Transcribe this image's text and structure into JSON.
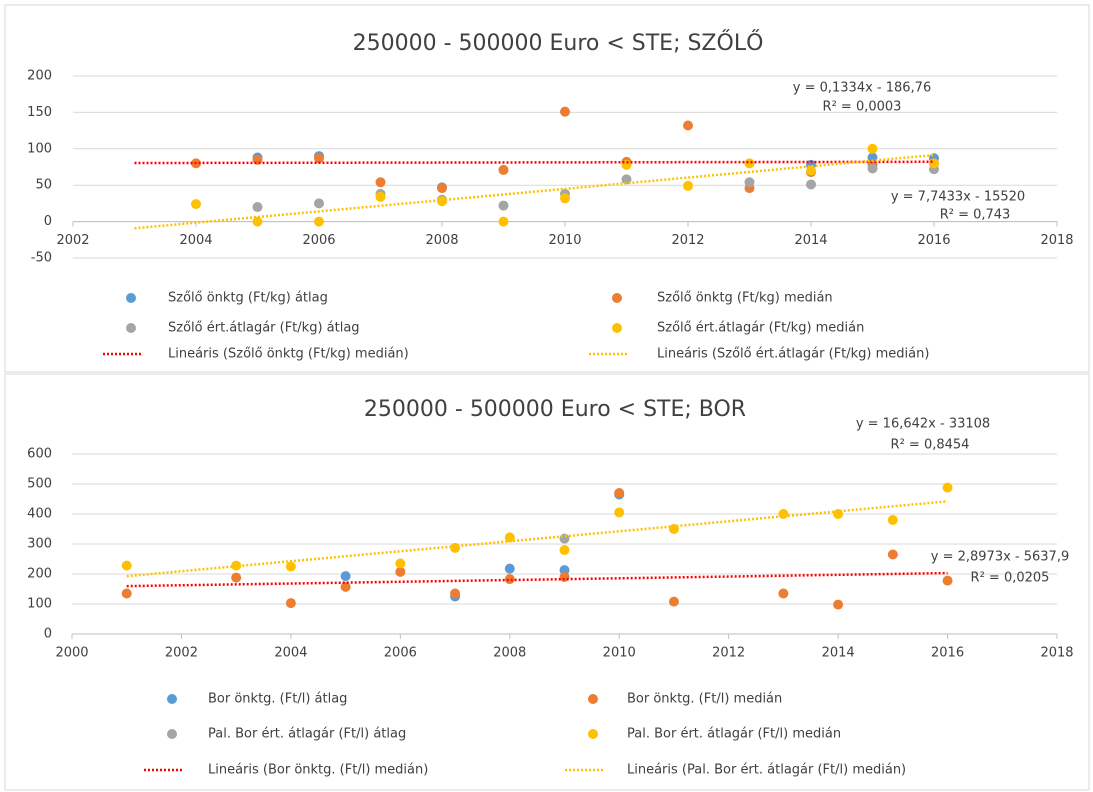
{
  "chart_data": [
    {
      "type": "scatter",
      "title": "250000 - 500000 Euro < STE; SZŐLŐ",
      "xlim": [
        2002,
        2018
      ],
      "xticks": [
        2002,
        2004,
        2006,
        2008,
        2010,
        2012,
        2014,
        2016,
        2018
      ],
      "ylim": [
        -50,
        200
      ],
      "yticks": [
        -50,
        0,
        50,
        100,
        150,
        200
      ],
      "grid": true,
      "series": [
        {
          "name": "Szőlő önktg (Ft/kg) átlag",
          "color": "#5b9bd5",
          "x": [
            2005,
            2006,
            2008,
            2011,
            2014,
            2015,
            2016
          ],
          "values": [
            88,
            90,
            47,
            80,
            78,
            88,
            87
          ]
        },
        {
          "name": "Szőlő önktg (Ft/kg) medián",
          "color": "#ed7d31",
          "x": [
            2004,
            2005,
            2006,
            2007,
            2008,
            2009,
            2010,
            2011,
            2012,
            2013,
            2014,
            2015,
            2016
          ],
          "values": [
            80,
            85,
            87,
            54,
            46,
            71,
            151,
            82,
            132,
            46,
            68,
            78,
            80
          ]
        },
        {
          "name": "Szőlő ért.átlagár (Ft/kg) átlag",
          "color": "#a5a5a5",
          "x": [
            2005,
            2006,
            2007,
            2008,
            2009,
            2010,
            2011,
            2013,
            2014,
            2015,
            2016
          ],
          "values": [
            20,
            25,
            38,
            30,
            22,
            38,
            58,
            54,
            51,
            73,
            72
          ]
        },
        {
          "name": "Szőlő ért.átlagár (Ft/kg) medián",
          "color": "#ffc000",
          "x": [
            2004,
            2005,
            2006,
            2007,
            2008,
            2009,
            2010,
            2011,
            2012,
            2013,
            2014,
            2015,
            2016
          ],
          "values": [
            24,
            0,
            0,
            34,
            28,
            0,
            32,
            78,
            49,
            80,
            70,
            100,
            80
          ]
        },
        {
          "name": "Lineáris (Szőlő önktg (Ft/kg) medián)",
          "type": "trendline",
          "color": "#ff0000",
          "x": [
            2003,
            2016
          ],
          "values": [
            80.44,
            82.17
          ]
        },
        {
          "name": "Lineáris (Szőlő ért.átlagár (Ft/kg) medián)",
          "type": "trendline",
          "color": "#ffc000",
          "x": [
            2003,
            2016
          ],
          "values": [
            -9.2,
            91.46
          ]
        }
      ],
      "annotations": [
        "y = 0,1334x - 186,76",
        "R² = 0,0003",
        "y = 7,7433x - 15520",
        "R² = 0,743"
      ]
    },
    {
      "type": "scatter",
      "title": "250000 - 500000 Euro < STE; BOR",
      "xlim": [
        2000,
        2018
      ],
      "xticks": [
        2000,
        2002,
        2004,
        2006,
        2008,
        2010,
        2012,
        2014,
        2016,
        2018
      ],
      "ylim": [
        0,
        600
      ],
      "yticks": [
        0,
        100,
        200,
        300,
        400,
        500,
        600
      ],
      "grid": true,
      "series": [
        {
          "name": "Bor önktg. (Ft/l) átlag",
          "color": "#5b9bd5",
          "x": [
            2005,
            2007,
            2008,
            2009,
            2010
          ],
          "values": [
            193,
            125,
            218,
            213,
            465
          ]
        },
        {
          "name": "Bor önktg. (Ft/l) medián",
          "color": "#ed7d31",
          "x": [
            2001,
            2003,
            2004,
            2005,
            2006,
            2007,
            2008,
            2009,
            2010,
            2011,
            2013,
            2014,
            2015,
            2016
          ],
          "values": [
            135,
            188,
            103,
            157,
            207,
            135,
            183,
            190,
            470,
            108,
            135,
            98,
            265,
            178
          ]
        },
        {
          "name": "Pal. Bor ért. átlagár (Ft/l) átlag",
          "color": "#a5a5a5",
          "x": [
            2009
          ],
          "values": [
            318
          ]
        },
        {
          "name": "Pal. Bor ért. átlagár (Ft/l) medián",
          "color": "#ffc000",
          "x": [
            2001,
            2003,
            2004,
            2006,
            2007,
            2008,
            2009,
            2010,
            2011,
            2013,
            2014,
            2015,
            2016
          ],
          "values": [
            228,
            228,
            225,
            235,
            287,
            322,
            280,
            405,
            350,
            400,
            400,
            380,
            488
          ]
        },
        {
          "name": "Lineáris (Bor önktg. (Ft/l) medián)",
          "type": "trendline",
          "color": "#ff0000",
          "x": [
            2001,
            2016
          ],
          "values": [
            159.6,
            203.1
          ]
        },
        {
          "name": "Lineáris (Pal. Bor ért. átlagár (Ft/l) medián)",
          "type": "trendline",
          "color": "#ffc000",
          "x": [
            2001,
            2016
          ],
          "values": [
            192.6,
            442.3
          ]
        }
      ],
      "annotations": [
        "y = 16,642x - 33108",
        "R² = 0,8454",
        "y = 2,8973x - 5637,9",
        "R² = 0,0205"
      ]
    }
  ]
}
